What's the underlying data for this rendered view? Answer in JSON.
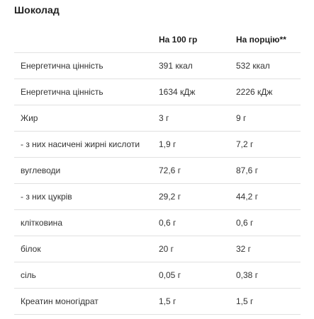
{
  "title": "Шоколад",
  "table": {
    "headers": [
      "",
      "На 100 гр",
      "На порцію**"
    ],
    "rows": [
      [
        "Енергетична цінність",
        "391 ккал",
        "532 ккал"
      ],
      [
        "Енергетична цінність",
        "1634 кДж",
        "2226 кДж"
      ],
      [
        "Жир",
        "3 г",
        "9 г"
      ],
      [
        "- з них насичені жирні кислоти",
        "1,9 г",
        "7,2 г"
      ],
      [
        "вуглеводи",
        "72,6 г",
        "87,6 г"
      ],
      [
        "- з них цукрів",
        "29,2 г",
        "44,2 г"
      ],
      [
        "клітковина",
        "0,6 г",
        "0,6 г"
      ],
      [
        "білок",
        "20 г",
        "32 г"
      ],
      [
        "сіль",
        "0,05 г",
        "0,38 г"
      ],
      [
        "Креатин моногідрат",
        "1,5 г",
        "1,5 г"
      ]
    ]
  }
}
